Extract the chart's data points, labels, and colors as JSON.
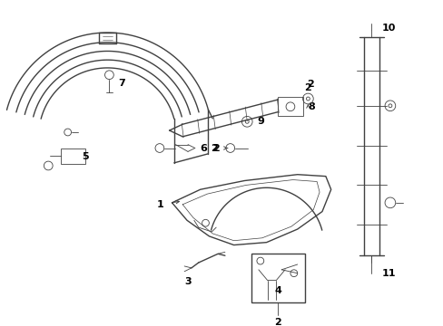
{
  "bg_color": "#ffffff",
  "line_color": "#404040",
  "label_color": "#000000",
  "fig_w": 4.89,
  "fig_h": 3.6,
  "dpi": 100,
  "xlim": [
    0,
    489
  ],
  "ylim": [
    0,
    360
  ]
}
